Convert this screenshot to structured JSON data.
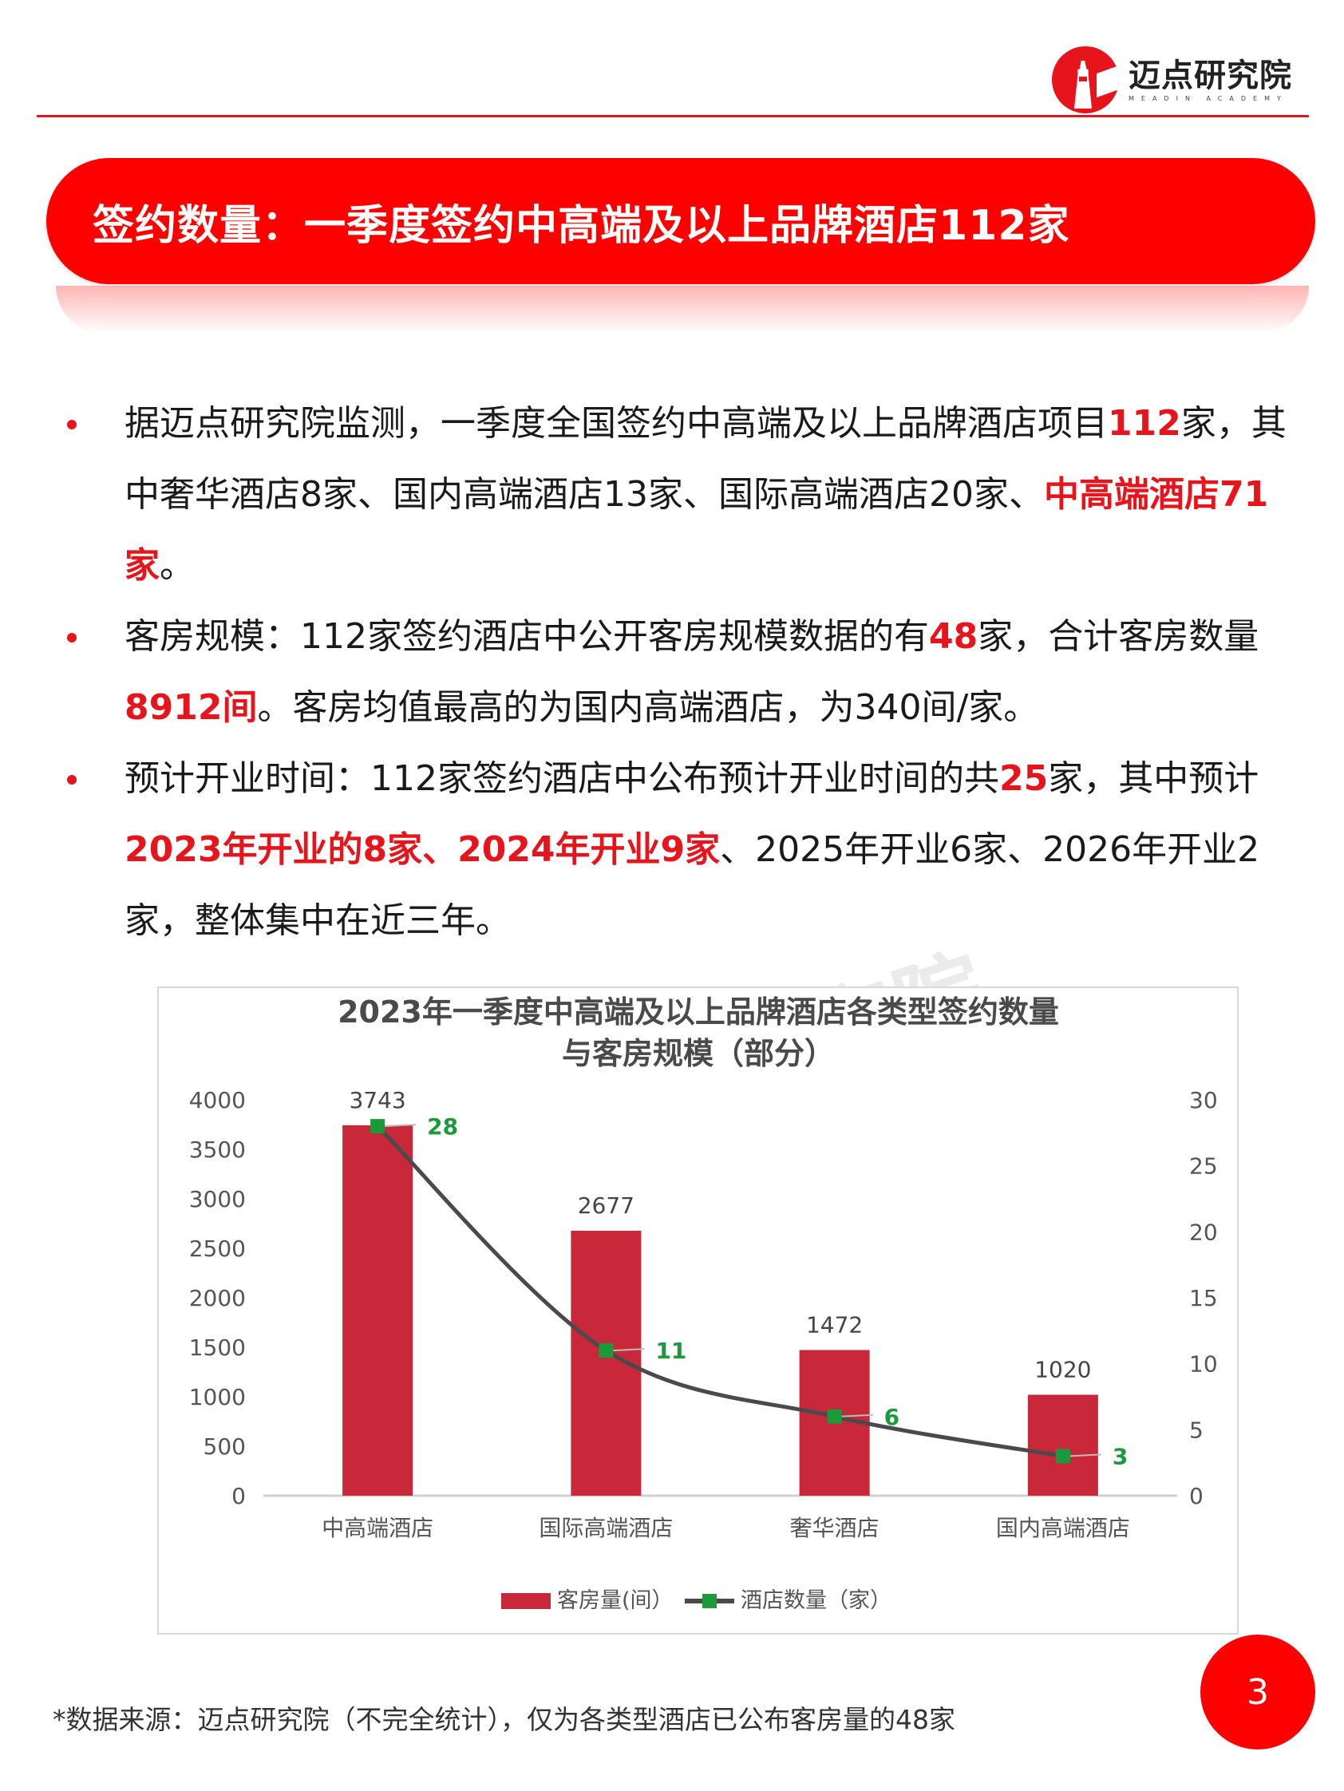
{
  "header": {
    "logo_cn": "迈点研究院",
    "logo_en": "MEADIN ACADEMY"
  },
  "banner": {
    "title": "签约数量：一季度签约中高端及以上品牌酒店112家"
  },
  "bullets": [
    {
      "segments": [
        {
          "text": "据迈点研究院监测，一季度全国签约中高端及以上品牌酒店项目",
          "hl": false
        },
        {
          "text": "112",
          "hl": true
        },
        {
          "text": "家，其中奢华酒店8家、国内高端酒店13家、国际高端酒店20家、",
          "hl": false
        },
        {
          "text": "中高端酒店71家",
          "hl": true
        },
        {
          "text": "。",
          "hl": false
        }
      ]
    },
    {
      "segments": [
        {
          "text": "客房规模：112家签约酒店中公开客房规模数据的有",
          "hl": false
        },
        {
          "text": "48",
          "hl": true
        },
        {
          "text": "家，合计客房数量",
          "hl": false
        },
        {
          "text": "8912间",
          "hl": true
        },
        {
          "text": "。客房均值最高的为国内高端酒店，为340间/家。",
          "hl": false
        }
      ]
    },
    {
      "segments": [
        {
          "text": "预计开业时间：112家签约酒店中公布预计开业时间的共",
          "hl": false
        },
        {
          "text": "25",
          "hl": true
        },
        {
          "text": "家，其中预计",
          "hl": false
        },
        {
          "text": "2023年开业的8家、2024年开业9家",
          "hl": true
        },
        {
          "text": "、2025年开业6家、2026年开业2家，整体集中在近三年。",
          "hl": false
        }
      ]
    }
  ],
  "chart": {
    "title_line1": "2023年一季度中高端及以上品牌酒店各类型签约数量",
    "title_line2": "与客房规模（部分）"
  },
  "chart_data": {
    "type": "bar",
    "title": "2023年一季度中高端及以上品牌酒店各类型签约数量与客房规模（部分）",
    "categories": [
      "中高端酒店",
      "国际高端酒店",
      "奢华酒店",
      "国内高端酒店"
    ],
    "series": [
      {
        "name": "客房量(间）",
        "type": "bar",
        "axis": "left",
        "color": "#c8283a",
        "values": [
          3743,
          2677,
          1472,
          1020
        ]
      },
      {
        "name": "酒店数量（家）",
        "type": "line",
        "axis": "right",
        "color": "#4a4a4a",
        "marker_color": "#1a9a3a",
        "values": [
          28,
          11,
          6,
          3
        ]
      }
    ],
    "left_axis": {
      "ylim": [
        0,
        4000
      ],
      "ticks": [
        0,
        500,
        1000,
        1500,
        2000,
        2500,
        3000,
        3500,
        4000
      ]
    },
    "right_axis": {
      "ylim": [
        0,
        30
      ],
      "ticks": [
        0,
        5,
        10,
        15,
        20,
        25,
        30
      ]
    },
    "xlabel": "",
    "ylabel": "",
    "grid": false,
    "legend_position": "bottom"
  },
  "footnote": "*数据来源：迈点研究院（不完全统计），仅为各类型酒店已公布客房量的48家",
  "page_number": "3",
  "colors": {
    "brand_red": "#e8141c",
    "banner_red": "#ff0000",
    "bar_red": "#c8283a",
    "line_gray": "#4a4a4a",
    "marker_green": "#1a9a3a"
  }
}
